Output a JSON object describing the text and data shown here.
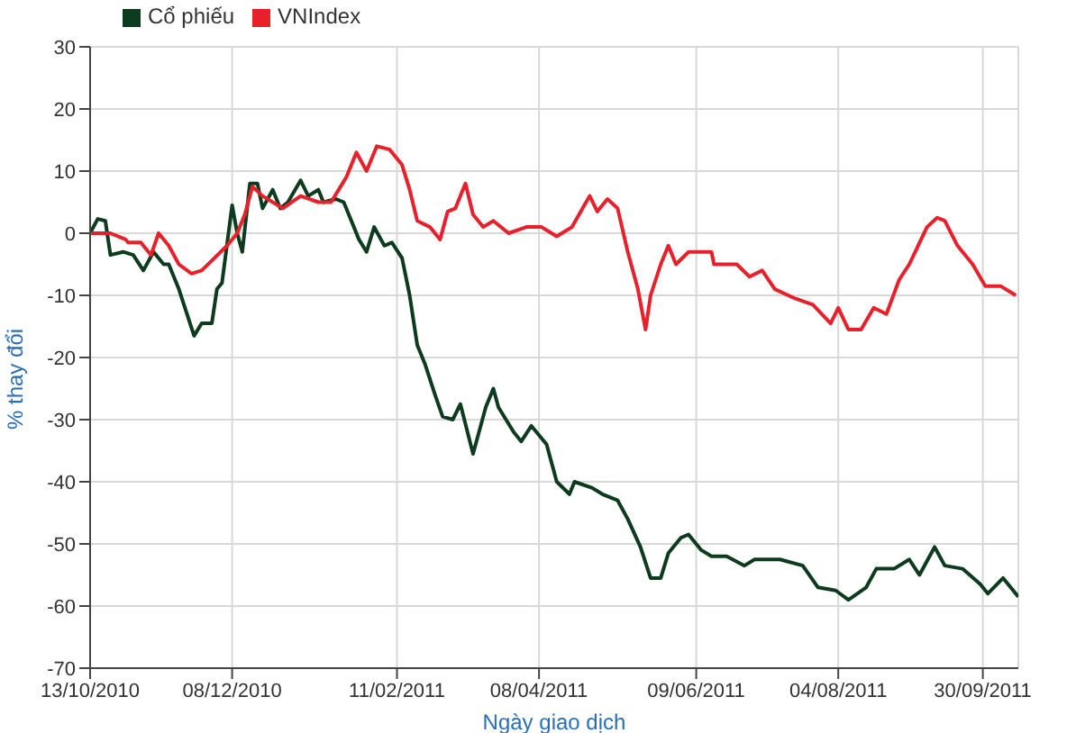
{
  "chart_data": {
    "type": "line",
    "xlabel": "Ngày giao dịch",
    "ylabel": "% thay đổi",
    "xlim": [
      "2010-10-13",
      "2011-10-14"
    ],
    "xticks": [
      {
        "value": "2010-10-13",
        "label": "13/10/2010"
      },
      {
        "value": "2010-12-08",
        "label": "08/12/2010"
      },
      {
        "value": "2011-02-11",
        "label": "11/02/2011"
      },
      {
        "value": "2011-04-08",
        "label": "08/04/2011"
      },
      {
        "value": "2011-06-09",
        "label": "09/06/2011"
      },
      {
        "value": "2011-08-04",
        "label": "04/08/2011"
      },
      {
        "value": "2011-09-30",
        "label": "30/09/2011"
      }
    ],
    "ylim": [
      -70,
      30
    ],
    "yticks": [
      -70,
      -60,
      -50,
      -40,
      -30,
      -20,
      -10,
      0,
      10,
      20,
      30
    ],
    "grid": true,
    "legend": "top left",
    "marker": "none",
    "line_style": "solid",
    "series": [
      {
        "name": "Cổ phiếu",
        "color": "#0d3b1e",
        "x": [
          "2010-10-13",
          "2010-10-16",
          "2010-10-19",
          "2010-10-21",
          "2010-10-26",
          "2010-10-30",
          "2010-11-03",
          "2010-11-07",
          "2010-11-11",
          "2010-11-13",
          "2010-11-17",
          "2010-11-23",
          "2010-11-26",
          "2010-11-30",
          "2010-12-02",
          "2010-12-04",
          "2010-12-08",
          "2010-12-10",
          "2010-12-12",
          "2010-12-15",
          "2010-12-18",
          "2010-12-20",
          "2010-12-24",
          "2010-12-27",
          "2010-12-30",
          "2011-01-04",
          "2011-01-07",
          "2011-01-11",
          "2011-01-13",
          "2011-01-18",
          "2011-01-21",
          "2011-01-23",
          "2011-01-27",
          "2011-01-30",
          "2011-02-02",
          "2011-02-06",
          "2011-02-09",
          "2011-02-13",
          "2011-02-16",
          "2011-02-19",
          "2011-02-21",
          "2011-02-22",
          "2011-02-26",
          "2011-03-01",
          "2011-03-05",
          "2011-03-08",
          "2011-03-13",
          "2011-03-18",
          "2011-03-21",
          "2011-03-23",
          "2011-03-29",
          "2011-04-01",
          "2011-04-05",
          "2011-04-11",
          "2011-04-15",
          "2011-04-20",
          "2011-04-22",
          "2011-04-29",
          "2011-05-03",
          "2011-05-09",
          "2011-05-13",
          "2011-05-18",
          "2011-05-22",
          "2011-05-26",
          "2011-05-29",
          "2011-06-03",
          "2011-06-06",
          "2011-06-11",
          "2011-06-15",
          "2011-06-21",
          "2011-06-28",
          "2011-07-02",
          "2011-07-12",
          "2011-07-21",
          "2011-07-27",
          "2011-08-03",
          "2011-08-08",
          "2011-08-15",
          "2011-08-19",
          "2011-08-26",
          "2011-09-01",
          "2011-09-05",
          "2011-09-11",
          "2011-09-15",
          "2011-09-22",
          "2011-09-29",
          "2011-10-02",
          "2011-10-08",
          "2011-10-14"
        ],
        "values": [
          0,
          2.3,
          2,
          -3.5,
          -3,
          -3.5,
          -6,
          -3,
          -5,
          -5,
          -9,
          -16.5,
          -14.5,
          -14.5,
          -9,
          -8,
          4.5,
          0,
          -3,
          8,
          8,
          4,
          7,
          4,
          5,
          8.5,
          6,
          7,
          5,
          5.5,
          5,
          3,
          -1,
          -3,
          1,
          -2,
          -1.5,
          -4,
          -10,
          -18,
          -20,
          -21,
          -26,
          -29.5,
          -30,
          -27.5,
          -35.5,
          -28,
          -25,
          -28,
          -32,
          -33.5,
          -31,
          -34,
          -40,
          -42,
          -40,
          -41,
          -42,
          -43,
          -46,
          -50.5,
          -55.5,
          -55.5,
          -51.5,
          -49,
          -48.5,
          -51,
          -52,
          -52,
          -53.5,
          -52.5,
          -52.5,
          -53.5,
          -57,
          -57.5,
          -59,
          -57,
          -54,
          -54,
          -52.5,
          -55,
          -50.5,
          -53.5,
          -54,
          -56.5,
          -58,
          -55.5,
          -58.5
        ]
      },
      {
        "name": "VNIndex",
        "color": "#e8202a",
        "x": [
          "2010-10-13",
          "2010-10-21",
          "2010-10-27",
          "2010-10-28",
          "2010-11-02",
          "2010-11-06",
          "2010-11-09",
          "2010-11-13",
          "2010-11-17",
          "2010-11-22",
          "2010-11-26",
          "2010-12-01",
          "2010-12-06",
          "2010-12-10",
          "2010-12-13",
          "2010-12-16",
          "2010-12-20",
          "2010-12-24",
          "2010-12-28",
          "2011-01-04",
          "2011-01-11",
          "2011-01-16",
          "2011-01-22",
          "2011-01-26",
          "2011-01-30",
          "2011-02-03",
          "2011-02-08",
          "2011-02-13",
          "2011-02-16",
          "2011-02-19",
          "2011-02-24",
          "2011-02-28",
          "2011-03-03",
          "2011-03-06",
          "2011-03-10",
          "2011-03-13",
          "2011-03-17",
          "2011-03-21",
          "2011-03-27",
          "2011-04-03",
          "2011-04-09",
          "2011-04-15",
          "2011-04-21",
          "2011-04-28",
          "2011-05-01",
          "2011-05-05",
          "2011-05-09",
          "2011-05-13",
          "2011-05-17",
          "2011-05-20",
          "2011-05-22",
          "2011-05-26",
          "2011-05-29",
          "2011-06-01",
          "2011-06-06",
          "2011-06-15",
          "2011-06-16",
          "2011-06-25",
          "2011-06-30",
          "2011-07-05",
          "2011-07-10",
          "2011-07-18",
          "2011-07-25",
          "2011-08-01",
          "2011-08-04",
          "2011-08-08",
          "2011-08-13",
          "2011-08-18",
          "2011-08-23",
          "2011-08-28",
          "2011-09-01",
          "2011-09-08",
          "2011-09-12",
          "2011-09-15",
          "2011-09-20",
          "2011-09-26",
          "2011-10-01",
          "2011-10-07",
          "2011-10-13"
        ],
        "values": [
          0,
          0,
          -1,
          -1.5,
          -1.5,
          -3.5,
          0,
          -2,
          -5,
          -6.5,
          -6,
          -4,
          -2,
          0,
          3,
          7.5,
          6,
          5,
          4,
          6,
          5,
          5,
          9,
          13,
          10,
          14,
          13.5,
          11,
          7,
          2,
          1,
          -1,
          3.5,
          4,
          8,
          3,
          1,
          2,
          0,
          1,
          1,
          -0.5,
          1,
          6,
          3.5,
          5.5,
          4,
          -3,
          -9,
          -15.5,
          -10,
          -5,
          -2,
          -5,
          -3,
          -3,
          -5,
          -5,
          -7,
          -6,
          -9,
          -10.5,
          -11.5,
          -14.5,
          -12,
          -15.5,
          -15.5,
          -12,
          -13,
          -7.5,
          -5,
          1,
          2.5,
          2,
          -2,
          -5,
          -8.5,
          -8.5,
          -10
        ]
      }
    ]
  }
}
